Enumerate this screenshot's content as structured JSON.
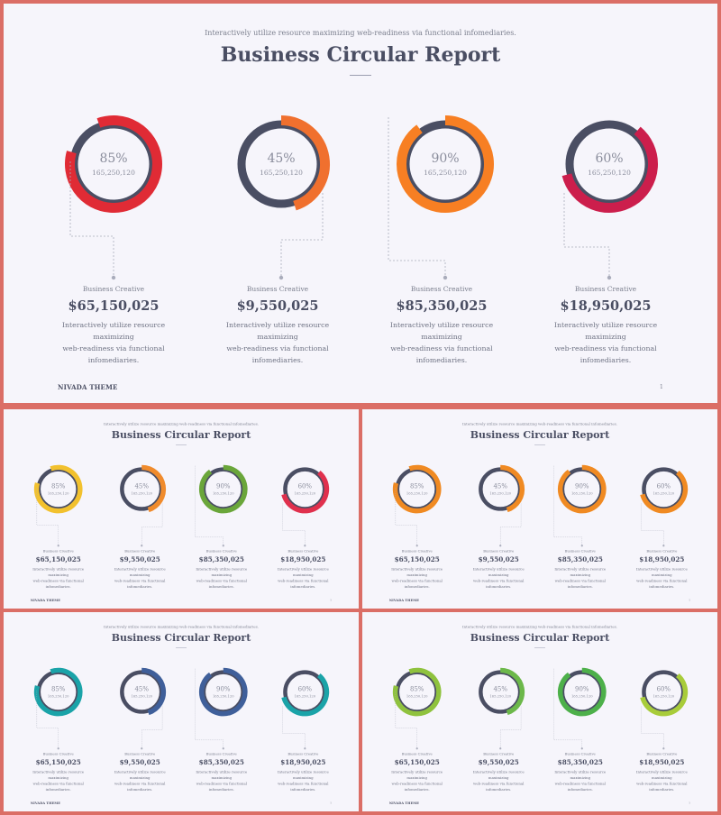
{
  "header": {
    "subtitle": "Interactively utilize resource maximizing web-readiness via functional infomediaries.",
    "title": "Business Circular Report"
  },
  "items": [
    {
      "percent_label": "85%",
      "percent": 85,
      "sub_value": "165,250,120",
      "label": "Business Creative",
      "amount": "$65,150,025",
      "desc_line1": "Interactively utilize resource maximizing",
      "desc_line2": "web-readiness via functional",
      "desc_line3": "infomediaries."
    },
    {
      "percent_label": "45%",
      "percent": 45,
      "sub_value": "165,250,120",
      "label": "Business Creative",
      "amount": "$9,550,025",
      "desc_line1": "Interactively utilize resource maximizing",
      "desc_line2": "web-readiness via functional",
      "desc_line3": "infomediaries."
    },
    {
      "percent_label": "90%",
      "percent": 90,
      "sub_value": "165,250,120",
      "label": "Business Creative",
      "amount": "$85,350,025",
      "desc_line1": "Interactively utilize resource maximizing",
      "desc_line2": "web-readiness via functional",
      "desc_line3": "infomediaries."
    },
    {
      "percent_label": "60%",
      "percent": 60,
      "sub_value": "165,250,120",
      "label": "Business Creative",
      "amount": "$18,950,025",
      "desc_line1": "Interactively utilize resource maximizing",
      "desc_line2": "web-readiness via functional",
      "desc_line3": "infomediaries."
    }
  ],
  "footer": {
    "brand": "NIVADA THEME",
    "page": "1"
  },
  "colors": {
    "ring_track": "#4a4e63",
    "variant_main": [
      "#e02b35",
      "#f0702e",
      "#f77f23",
      "#cc1e4c"
    ],
    "variant_yellow": [
      "#f2c12e",
      "#f08b2c",
      "#6aa63a",
      "#e0304d"
    ],
    "variant_orange": [
      "#f08a22",
      "#f08a22",
      "#f08a22",
      "#f08a22"
    ],
    "variant_teal": [
      "#1aa3a8",
      "#3f5f9a",
      "#3f5f9a",
      "#1aa3a8"
    ],
    "variant_green": [
      "#8fc23e",
      "#6cb84a",
      "#4db04a",
      "#a8cc3a"
    ]
  }
}
